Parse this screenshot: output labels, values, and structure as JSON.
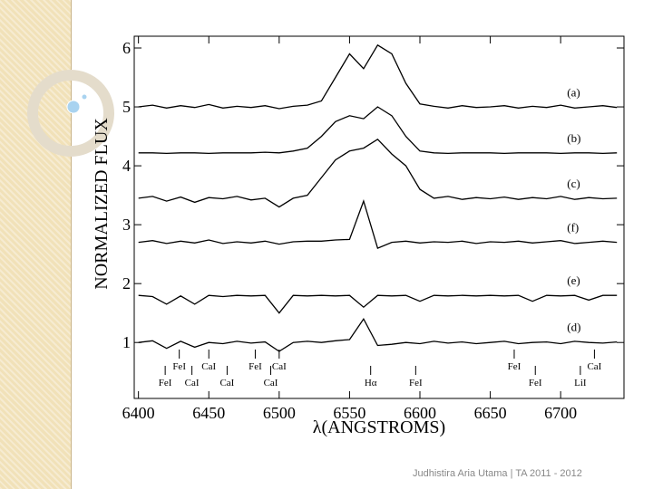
{
  "chart_data": {
    "type": "line",
    "y_label": "NORMALIZED FLUX",
    "x_label": "λ(ANGSTROMS)",
    "xlim": [
      6397,
      6745
    ],
    "ylim": [
      0.05,
      6.2
    ],
    "xticks": [
      6400,
      6450,
      6500,
      6550,
      6600,
      6650,
      6700
    ],
    "yticks": [
      1,
      2,
      3,
      4,
      5,
      6
    ],
    "x": [
      6400,
      6410,
      6420,
      6430,
      6440,
      6450,
      6460,
      6470,
      6480,
      6490,
      6500,
      6510,
      6520,
      6530,
      6540,
      6550,
      6560,
      6570,
      6580,
      6590,
      6600,
      6610,
      6620,
      6630,
      6640,
      6650,
      6660,
      6670,
      6680,
      6690,
      6700,
      6710,
      6720,
      6730,
      6740
    ],
    "series": [
      {
        "name": "(a)",
        "color": "#000000",
        "values": [
          5.0,
          5.03,
          4.98,
          5.02,
          4.99,
          5.04,
          4.98,
          5.01,
          4.99,
          5.02,
          4.97,
          5.01,
          5.03,
          5.1,
          5.5,
          5.9,
          5.65,
          6.05,
          5.9,
          5.4,
          5.05,
          5.01,
          4.98,
          5.02,
          4.99,
          5.0,
          5.02,
          4.98,
          5.01,
          4.99,
          5.03,
          4.98,
          5.0,
          5.02,
          4.99
        ]
      },
      {
        "name": "(b)",
        "color": "#000000",
        "values": [
          4.22,
          4.22,
          4.21,
          4.22,
          4.22,
          4.21,
          4.22,
          4.22,
          4.22,
          4.23,
          4.22,
          4.25,
          4.3,
          4.5,
          4.75,
          4.85,
          4.8,
          5.0,
          4.85,
          4.5,
          4.25,
          4.22,
          4.21,
          4.22,
          4.22,
          4.22,
          4.21,
          4.22,
          4.22,
          4.22,
          4.21,
          4.22,
          4.22,
          4.21,
          4.22
        ]
      },
      {
        "name": "(c)",
        "color": "#000000",
        "values": [
          3.45,
          3.48,
          3.4,
          3.47,
          3.38,
          3.46,
          3.44,
          3.48,
          3.42,
          3.45,
          3.3,
          3.45,
          3.5,
          3.8,
          4.1,
          4.25,
          4.3,
          4.45,
          4.2,
          4.0,
          3.6,
          3.45,
          3.48,
          3.43,
          3.46,
          3.44,
          3.47,
          3.43,
          3.46,
          3.44,
          3.48,
          3.43,
          3.46,
          3.44,
          3.45
        ]
      },
      {
        "name": "(f)",
        "color": "#000000",
        "values": [
          2.7,
          2.73,
          2.68,
          2.72,
          2.69,
          2.74,
          2.68,
          2.71,
          2.69,
          2.72,
          2.67,
          2.71,
          2.72,
          2.72,
          2.74,
          2.75,
          3.4,
          2.6,
          2.7,
          2.72,
          2.69,
          2.71,
          2.7,
          2.72,
          2.68,
          2.71,
          2.7,
          2.72,
          2.69,
          2.71,
          2.73,
          2.68,
          2.7,
          2.72,
          2.7
        ]
      },
      {
        "name": "(e)",
        "color": "#000000",
        "values": [
          1.8,
          1.78,
          1.65,
          1.79,
          1.65,
          1.8,
          1.78,
          1.8,
          1.79,
          1.8,
          1.5,
          1.8,
          1.79,
          1.8,
          1.79,
          1.8,
          1.6,
          1.8,
          1.79,
          1.8,
          1.7,
          1.8,
          1.79,
          1.8,
          1.79,
          1.8,
          1.79,
          1.8,
          1.7,
          1.8,
          1.79,
          1.8,
          1.72,
          1.8,
          1.8
        ]
      },
      {
        "name": "(d)",
        "color": "#000000",
        "values": [
          1.0,
          1.03,
          0.9,
          1.02,
          0.92,
          1.0,
          0.98,
          1.02,
          0.99,
          1.01,
          0.85,
          1.0,
          1.02,
          1.0,
          1.03,
          1.05,
          1.4,
          0.95,
          0.97,
          1.0,
          0.98,
          1.02,
          0.99,
          1.01,
          0.98,
          1.0,
          1.02,
          0.98,
          1.0,
          1.01,
          0.98,
          1.02,
          1.0,
          0.99,
          1.01
        ]
      }
    ],
    "annotations_top": [
      {
        "text": "FeI",
        "x": 6429
      },
      {
        "text": "CaI",
        "x": 6450
      },
      {
        "text": "FeI",
        "x": 6483
      },
      {
        "text": "CaI",
        "x": 6500
      },
      {
        "text": "FeI",
        "x": 6667
      },
      {
        "text": "CaI",
        "x": 6724
      }
    ],
    "annotations_bottom": [
      {
        "text": "FeI",
        "x": 6419
      },
      {
        "text": "CaI",
        "x": 6438
      },
      {
        "text": "CaI",
        "x": 6463
      },
      {
        "text": "CaI",
        "x": 6494
      },
      {
        "text": "Hα",
        "x": 6565
      },
      {
        "text": "FeI",
        "x": 6597
      },
      {
        "text": "FeI",
        "x": 6682
      },
      {
        "text": "LiI",
        "x": 6714
      }
    ]
  },
  "footer": "Judhistira Aria Utama | TA 2011 - 2012"
}
